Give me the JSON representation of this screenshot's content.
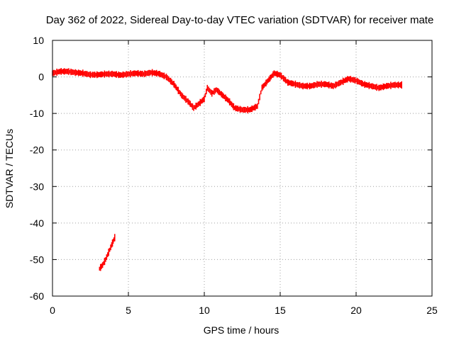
{
  "chart_data": {
    "type": "scatter",
    "title": "Day 362 of 2022, Sidereal Day-to-day VTEC variation (SDTVAR) for receiver mate",
    "xlabel": "GPS time / hours",
    "ylabel": "SDTVAR / TECUs",
    "xlim": [
      0,
      25
    ],
    "ylim": [
      -60,
      10
    ],
    "xticks": [
      0,
      5,
      10,
      15,
      20,
      25
    ],
    "yticks": [
      10,
      0,
      -10,
      -20,
      -30,
      -40,
      -50,
      -60
    ],
    "grid": true,
    "series": [
      {
        "name": "SDTVAR",
        "color": "#ff0000",
        "band_halfwidth": 1.0,
        "segments": [
          [
            [
              0.0,
              1.0
            ],
            [
              0.5,
              1.5
            ],
            [
              1.0,
              1.5
            ],
            [
              1.5,
              1.2
            ],
            [
              2.0,
              1.0
            ],
            [
              2.5,
              0.6
            ],
            [
              3.0,
              0.6
            ],
            [
              3.5,
              0.8
            ],
            [
              4.0,
              0.8
            ],
            [
              4.5,
              0.5
            ],
            [
              5.0,
              0.8
            ],
            [
              5.5,
              1.0
            ],
            [
              6.0,
              0.8
            ],
            [
              6.5,
              1.2
            ],
            [
              7.0,
              0.9
            ],
            [
              7.5,
              0.0
            ],
            [
              8.0,
              -2.0
            ],
            [
              8.5,
              -5.0
            ],
            [
              9.0,
              -7.0
            ],
            [
              9.3,
              -8.5
            ],
            [
              9.6,
              -7.5
            ],
            [
              10.0,
              -6.0
            ],
            [
              10.2,
              -3.0
            ],
            [
              10.5,
              -4.5
            ],
            [
              10.8,
              -3.5
            ],
            [
              11.2,
              -5.0
            ],
            [
              11.6,
              -6.5
            ],
            [
              12.0,
              -8.5
            ],
            [
              12.5,
              -9.0
            ],
            [
              13.0,
              -9.0
            ],
            [
              13.5,
              -8.0
            ],
            [
              13.8,
              -3.0
            ],
            [
              14.2,
              -1.0
            ],
            [
              14.6,
              1.0
            ],
            [
              15.0,
              0.5
            ],
            [
              15.5,
              -1.5
            ],
            [
              16.0,
              -2.0
            ],
            [
              16.5,
              -2.5
            ],
            [
              17.0,
              -2.5
            ],
            [
              17.5,
              -2.0
            ],
            [
              18.0,
              -2.0
            ],
            [
              18.5,
              -2.5
            ],
            [
              19.0,
              -1.5
            ],
            [
              19.5,
              -0.5
            ],
            [
              20.0,
              -1.0
            ],
            [
              20.5,
              -2.0
            ],
            [
              21.0,
              -2.5
            ],
            [
              21.5,
              -3.0
            ],
            [
              22.0,
              -2.5
            ],
            [
              22.5,
              -2.2
            ],
            [
              23.0,
              -2.2
            ]
          ],
          [
            [
              3.1,
              -52.5
            ],
            [
              3.3,
              -51.5
            ],
            [
              3.5,
              -50.0
            ],
            [
              3.7,
              -48.0
            ],
            [
              3.9,
              -46.0
            ],
            [
              4.0,
              -45.0
            ],
            [
              4.1,
              -44.0
            ]
          ]
        ]
      }
    ]
  }
}
